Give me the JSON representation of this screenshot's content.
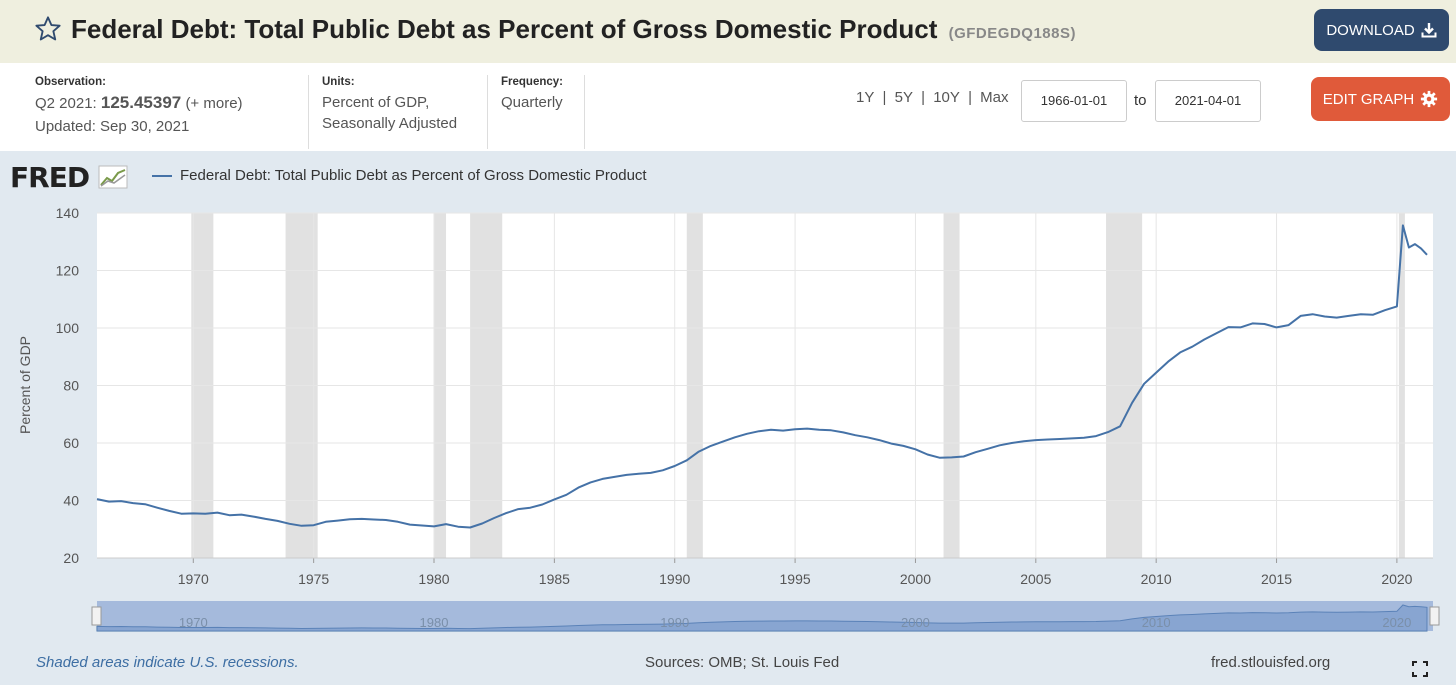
{
  "header": {
    "title": "Federal Debt: Total Public Debt as Percent of Gross Domestic Product",
    "series_id": "(GFDEGDQ188S)",
    "download_label": "DOWNLOAD"
  },
  "observation": {
    "label": "Observation:",
    "period": "Q2 2021:",
    "value": "125.45397",
    "more": "(+ more)",
    "updated": "Updated: Sep 30, 2021"
  },
  "units": {
    "label": "Units:",
    "line1": "Percent of GDP,",
    "line2": "Seasonally Adjusted"
  },
  "frequency": {
    "label": "Frequency:",
    "value": "Quarterly"
  },
  "range_buttons": [
    "1Y",
    "5Y",
    "10Y",
    "Max"
  ],
  "range_sep": "|",
  "date_range": {
    "start": "1966-01-01",
    "to_label": "to",
    "end": "2021-04-01"
  },
  "edit_graph_label": "EDIT GRAPH",
  "logo_text": "FRED",
  "chart_data": {
    "type": "line",
    "title": "Federal Debt: Total Public Debt as Percent of Gross Domestic Product",
    "ylabel": "Percent of GDP",
    "xlabel": "",
    "ylim": [
      20,
      140
    ],
    "yticks": [
      20,
      40,
      60,
      80,
      100,
      120,
      140
    ],
    "xlim": [
      1966.0,
      2021.5
    ],
    "xticks": [
      1970,
      1975,
      1980,
      1985,
      1990,
      1995,
      2000,
      2005,
      2010,
      2015,
      2020
    ],
    "grid": true,
    "series": [
      {
        "name": "Federal Debt: Total Public Debt as Percent of Gross Domestic Product",
        "color": "#4572a7",
        "points": [
          [
            1966.0,
            40.5
          ],
          [
            1966.5,
            39.6
          ],
          [
            1967.0,
            39.8
          ],
          [
            1967.5,
            39.1
          ],
          [
            1968.0,
            38.7
          ],
          [
            1968.5,
            37.5
          ],
          [
            1969.0,
            36.4
          ],
          [
            1969.5,
            35.4
          ],
          [
            1970.0,
            35.5
          ],
          [
            1970.5,
            35.4
          ],
          [
            1971.0,
            35.8
          ],
          [
            1971.5,
            34.9
          ],
          [
            1972.0,
            35.1
          ],
          [
            1972.5,
            34.4
          ],
          [
            1973.0,
            33.6
          ],
          [
            1973.5,
            32.9
          ],
          [
            1974.0,
            31.9
          ],
          [
            1974.5,
            31.2
          ],
          [
            1975.0,
            31.4
          ],
          [
            1975.5,
            32.6
          ],
          [
            1976.0,
            33.0
          ],
          [
            1976.5,
            33.5
          ],
          [
            1977.0,
            33.6
          ],
          [
            1977.5,
            33.4
          ],
          [
            1978.0,
            33.2
          ],
          [
            1978.5,
            32.6
          ],
          [
            1979.0,
            31.6
          ],
          [
            1979.5,
            31.3
          ],
          [
            1980.0,
            31.0
          ],
          [
            1980.5,
            31.8
          ],
          [
            1981.0,
            30.9
          ],
          [
            1981.5,
            30.6
          ],
          [
            1982.0,
            32.0
          ],
          [
            1982.5,
            33.9
          ],
          [
            1983.0,
            35.6
          ],
          [
            1983.5,
            37.0
          ],
          [
            1984.0,
            37.5
          ],
          [
            1984.5,
            38.6
          ],
          [
            1985.0,
            40.4
          ],
          [
            1985.5,
            42.0
          ],
          [
            1986.0,
            44.5
          ],
          [
            1986.5,
            46.3
          ],
          [
            1987.0,
            47.5
          ],
          [
            1987.5,
            48.2
          ],
          [
            1988.0,
            48.9
          ],
          [
            1988.5,
            49.3
          ],
          [
            1989.0,
            49.6
          ],
          [
            1989.5,
            50.5
          ],
          [
            1990.0,
            52.0
          ],
          [
            1990.5,
            54.0
          ],
          [
            1991.0,
            57.0
          ],
          [
            1991.5,
            59.0
          ],
          [
            1992.0,
            60.5
          ],
          [
            1992.5,
            62.0
          ],
          [
            1993.0,
            63.2
          ],
          [
            1993.5,
            64.1
          ],
          [
            1994.0,
            64.6
          ],
          [
            1994.5,
            64.3
          ],
          [
            1995.0,
            64.8
          ],
          [
            1995.5,
            65.0
          ],
          [
            1996.0,
            64.6
          ],
          [
            1996.5,
            64.4
          ],
          [
            1997.0,
            63.7
          ],
          [
            1997.5,
            62.7
          ],
          [
            1998.0,
            62.0
          ],
          [
            1998.5,
            61.0
          ],
          [
            1999.0,
            59.8
          ],
          [
            1999.5,
            59.0
          ],
          [
            2000.0,
            57.8
          ],
          [
            2000.5,
            56.0
          ],
          [
            2001.0,
            54.9
          ],
          [
            2001.5,
            55.0
          ],
          [
            2002.0,
            55.3
          ],
          [
            2002.5,
            56.8
          ],
          [
            2003.0,
            58.0
          ],
          [
            2003.5,
            59.2
          ],
          [
            2004.0,
            60.0
          ],
          [
            2004.5,
            60.6
          ],
          [
            2005.0,
            61.0
          ],
          [
            2005.5,
            61.2
          ],
          [
            2006.0,
            61.4
          ],
          [
            2006.5,
            61.6
          ],
          [
            2007.0,
            61.8
          ],
          [
            2007.5,
            62.4
          ],
          [
            2008.0,
            63.8
          ],
          [
            2008.5,
            65.8
          ],
          [
            2009.0,
            74.0
          ],
          [
            2009.5,
            80.6
          ],
          [
            2010.0,
            84.5
          ],
          [
            2010.5,
            88.3
          ],
          [
            2011.0,
            91.5
          ],
          [
            2011.5,
            93.5
          ],
          [
            2012.0,
            96.0
          ],
          [
            2012.5,
            98.2
          ],
          [
            2013.0,
            100.3
          ],
          [
            2013.5,
            100.2
          ],
          [
            2014.0,
            101.6
          ],
          [
            2014.5,
            101.4
          ],
          [
            2015.0,
            100.2
          ],
          [
            2015.5,
            101.0
          ],
          [
            2016.0,
            104.2
          ],
          [
            2016.5,
            104.8
          ],
          [
            2017.0,
            104.0
          ],
          [
            2017.5,
            103.6
          ],
          [
            2018.0,
            104.2
          ],
          [
            2018.5,
            104.8
          ],
          [
            2019.0,
            104.6
          ],
          [
            2019.5,
            106.2
          ],
          [
            2020.0,
            107.5
          ],
          [
            2020.25,
            135.7
          ],
          [
            2020.5,
            128.0
          ],
          [
            2020.75,
            129.2
          ],
          [
            2021.0,
            127.7
          ],
          [
            2021.25,
            125.45
          ]
        ]
      }
    ],
    "recessions": [
      [
        1969.9167,
        1970.8333
      ],
      [
        1973.8333,
        1975.1667
      ],
      [
        1980.0,
        1980.5
      ],
      [
        1981.5,
        1982.8333
      ],
      [
        1990.5,
        1991.1667
      ],
      [
        2001.1667,
        2001.8333
      ],
      [
        2007.9167,
        2009.4167
      ],
      [
        2020.0833,
        2020.3333
      ]
    ],
    "navigator_labels": [
      "1970",
      "1980",
      "1990",
      "2000",
      "2010",
      "2020"
    ]
  },
  "footer": {
    "note": "Shaded areas indicate U.S. recessions.",
    "sources": "Sources: OMB; St. Louis Fed",
    "site": "fred.stlouisfed.org"
  },
  "colors": {
    "accent": "#2f4a6e",
    "edit": "#e05a3a",
    "series": "#4572a7",
    "recession": "#e1e1e1",
    "background": "#e1e9f0"
  }
}
